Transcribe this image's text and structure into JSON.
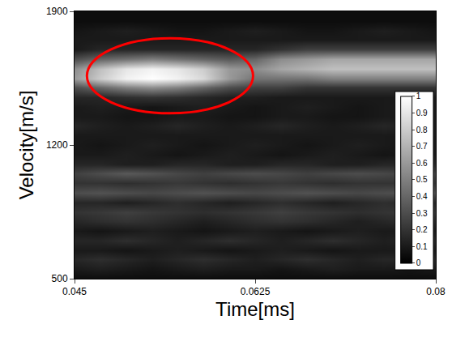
{
  "chart_data": {
    "type": "heatmap",
    "x_label": "Time[ms]",
    "y_label": "Velocity[m/s]",
    "x": [
      0.045,
      0.0475,
      0.05,
      0.0525,
      0.055,
      0.0575,
      0.06,
      0.0625,
      0.065,
      0.0675,
      0.07,
      0.0725,
      0.075,
      0.0775,
      0.08
    ],
    "y": [
      500,
      550,
      600,
      650,
      700,
      750,
      800,
      850,
      900,
      950,
      1000,
      1050,
      1100,
      1150,
      1200,
      1250,
      1300,
      1350,
      1400,
      1450,
      1500,
      1550,
      1600,
      1650,
      1700,
      1750,
      1800,
      1850,
      1900
    ],
    "cells": [
      [
        0.05,
        0.05,
        0.05,
        0.05,
        0.05,
        0.05,
        0.05,
        0.05,
        0.05,
        0.05,
        0.05,
        0.05,
        0.05,
        0.05,
        0.05
      ],
      [
        0.1,
        0.12,
        0.1,
        0.08,
        0.1,
        0.12,
        0.1,
        0.1,
        0.08,
        0.1,
        0.12,
        0.1,
        0.1,
        0.08,
        0.1
      ],
      [
        0.15,
        0.18,
        0.15,
        0.12,
        0.15,
        0.18,
        0.15,
        0.12,
        0.15,
        0.18,
        0.15,
        0.12,
        0.15,
        0.15,
        0.15
      ],
      [
        0.1,
        0.1,
        0.08,
        0.1,
        0.12,
        0.1,
        0.08,
        0.1,
        0.12,
        0.1,
        0.08,
        0.1,
        0.1,
        0.1,
        0.1
      ],
      [
        0.15,
        0.15,
        0.18,
        0.15,
        0.12,
        0.15,
        0.18,
        0.15,
        0.12,
        0.15,
        0.18,
        0.15,
        0.12,
        0.15,
        0.15
      ],
      [
        0.1,
        0.08,
        0.1,
        0.12,
        0.1,
        0.08,
        0.1,
        0.12,
        0.1,
        0.08,
        0.1,
        0.12,
        0.1,
        0.1,
        0.1
      ],
      [
        0.15,
        0.18,
        0.2,
        0.18,
        0.15,
        0.12,
        0.15,
        0.18,
        0.2,
        0.18,
        0.15,
        0.12,
        0.15,
        0.18,
        0.15
      ],
      [
        0.2,
        0.22,
        0.25,
        0.22,
        0.2,
        0.18,
        0.2,
        0.22,
        0.25,
        0.22,
        0.2,
        0.18,
        0.2,
        0.22,
        0.2
      ],
      [
        0.15,
        0.15,
        0.12,
        0.15,
        0.18,
        0.15,
        0.12,
        0.15,
        0.18,
        0.15,
        0.12,
        0.15,
        0.18,
        0.15,
        0.15
      ],
      [
        0.3,
        0.32,
        0.3,
        0.28,
        0.3,
        0.32,
        0.3,
        0.28,
        0.3,
        0.32,
        0.3,
        0.28,
        0.3,
        0.32,
        0.3
      ],
      [
        0.2,
        0.2,
        0.18,
        0.2,
        0.22,
        0.2,
        0.18,
        0.2,
        0.22,
        0.2,
        0.18,
        0.2,
        0.2,
        0.2,
        0.2
      ],
      [
        0.25,
        0.3,
        0.35,
        0.32,
        0.28,
        0.25,
        0.28,
        0.3,
        0.28,
        0.25,
        0.28,
        0.3,
        0.28,
        0.25,
        0.25
      ],
      [
        0.15,
        0.15,
        0.12,
        0.12,
        0.15,
        0.15,
        0.12,
        0.12,
        0.15,
        0.15,
        0.12,
        0.12,
        0.15,
        0.15,
        0.15
      ],
      [
        0.1,
        0.1,
        0.12,
        0.1,
        0.08,
        0.1,
        0.12,
        0.1,
        0.08,
        0.1,
        0.12,
        0.1,
        0.08,
        0.1,
        0.1
      ],
      [
        0.1,
        0.08,
        0.1,
        0.12,
        0.1,
        0.08,
        0.1,
        0.12,
        0.1,
        0.08,
        0.1,
        0.12,
        0.1,
        0.08,
        0.1
      ],
      [
        0.1,
        0.1,
        0.1,
        0.1,
        0.1,
        0.1,
        0.1,
        0.1,
        0.1,
        0.1,
        0.1,
        0.1,
        0.1,
        0.1,
        0.1
      ],
      [
        0.15,
        0.12,
        0.1,
        0.12,
        0.15,
        0.12,
        0.1,
        0.12,
        0.15,
        0.12,
        0.1,
        0.12,
        0.15,
        0.12,
        0.1
      ],
      [
        0.1,
        0.1,
        0.08,
        0.08,
        0.1,
        0.1,
        0.08,
        0.08,
        0.1,
        0.1,
        0.08,
        0.08,
        0.1,
        0.1,
        0.1
      ],
      [
        0.1,
        0.12,
        0.1,
        0.08,
        0.1,
        0.12,
        0.1,
        0.08,
        0.1,
        0.12,
        0.1,
        0.08,
        0.1,
        0.12,
        0.1
      ],
      [
        0.15,
        0.15,
        0.18,
        0.2,
        0.18,
        0.15,
        0.12,
        0.12,
        0.1,
        0.1,
        0.1,
        0.1,
        0.1,
        0.1,
        0.1
      ],
      [
        0.3,
        0.4,
        0.5,
        0.55,
        0.5,
        0.4,
        0.3,
        0.25,
        0.25,
        0.2,
        0.2,
        0.2,
        0.2,
        0.2,
        0.2
      ],
      [
        0.6,
        0.8,
        0.95,
        1.0,
        0.95,
        0.85,
        0.6,
        0.45,
        0.45,
        0.45,
        0.5,
        0.5,
        0.5,
        0.5,
        0.5
      ],
      [
        0.55,
        0.75,
        0.9,
        0.95,
        0.9,
        0.8,
        0.6,
        0.55,
        0.65,
        0.7,
        0.75,
        0.75,
        0.75,
        0.75,
        0.75
      ],
      [
        0.3,
        0.4,
        0.45,
        0.5,
        0.45,
        0.4,
        0.35,
        0.4,
        0.55,
        0.6,
        0.65,
        0.65,
        0.65,
        0.65,
        0.65
      ],
      [
        0.1,
        0.15,
        0.15,
        0.15,
        0.15,
        0.15,
        0.15,
        0.15,
        0.2,
        0.25,
        0.25,
        0.25,
        0.25,
        0.25,
        0.25
      ],
      [
        0.1,
        0.1,
        0.1,
        0.1,
        0.1,
        0.1,
        0.1,
        0.1,
        0.1,
        0.1,
        0.1,
        0.1,
        0.1,
        0.1,
        0.1
      ],
      [
        0.08,
        0.1,
        0.12,
        0.1,
        0.08,
        0.08,
        0.1,
        0.12,
        0.1,
        0.08,
        0.08,
        0.1,
        0.12,
        0.1,
        0.08
      ],
      [
        0.05,
        0.05,
        0.05,
        0.05,
        0.05,
        0.05,
        0.05,
        0.05,
        0.05,
        0.05,
        0.05,
        0.05,
        0.05,
        0.05,
        0.05
      ],
      [
        0.05,
        0.05,
        0.05,
        0.05,
        0.05,
        0.05,
        0.05,
        0.05,
        0.05,
        0.05,
        0.05,
        0.05,
        0.05,
        0.05,
        0.05
      ]
    ],
    "xlim": [
      0.045,
      0.08
    ],
    "xticks": [
      0.045,
      0.0625,
      0.08
    ],
    "ylim": [
      500,
      1900
    ],
    "yticks": [
      500,
      1200,
      1900
    ],
    "colorbar_range": [
      0,
      1
    ],
    "colorbar_ticks": [
      0,
      0.1,
      0.2,
      0.3,
      0.4,
      0.5,
      0.6,
      0.7,
      0.8,
      0.9,
      1
    ],
    "highlight": {
      "x": [
        0.0462,
        0.0623
      ],
      "y": [
        1366,
        1759
      ],
      "color": "#ff0000"
    }
  }
}
